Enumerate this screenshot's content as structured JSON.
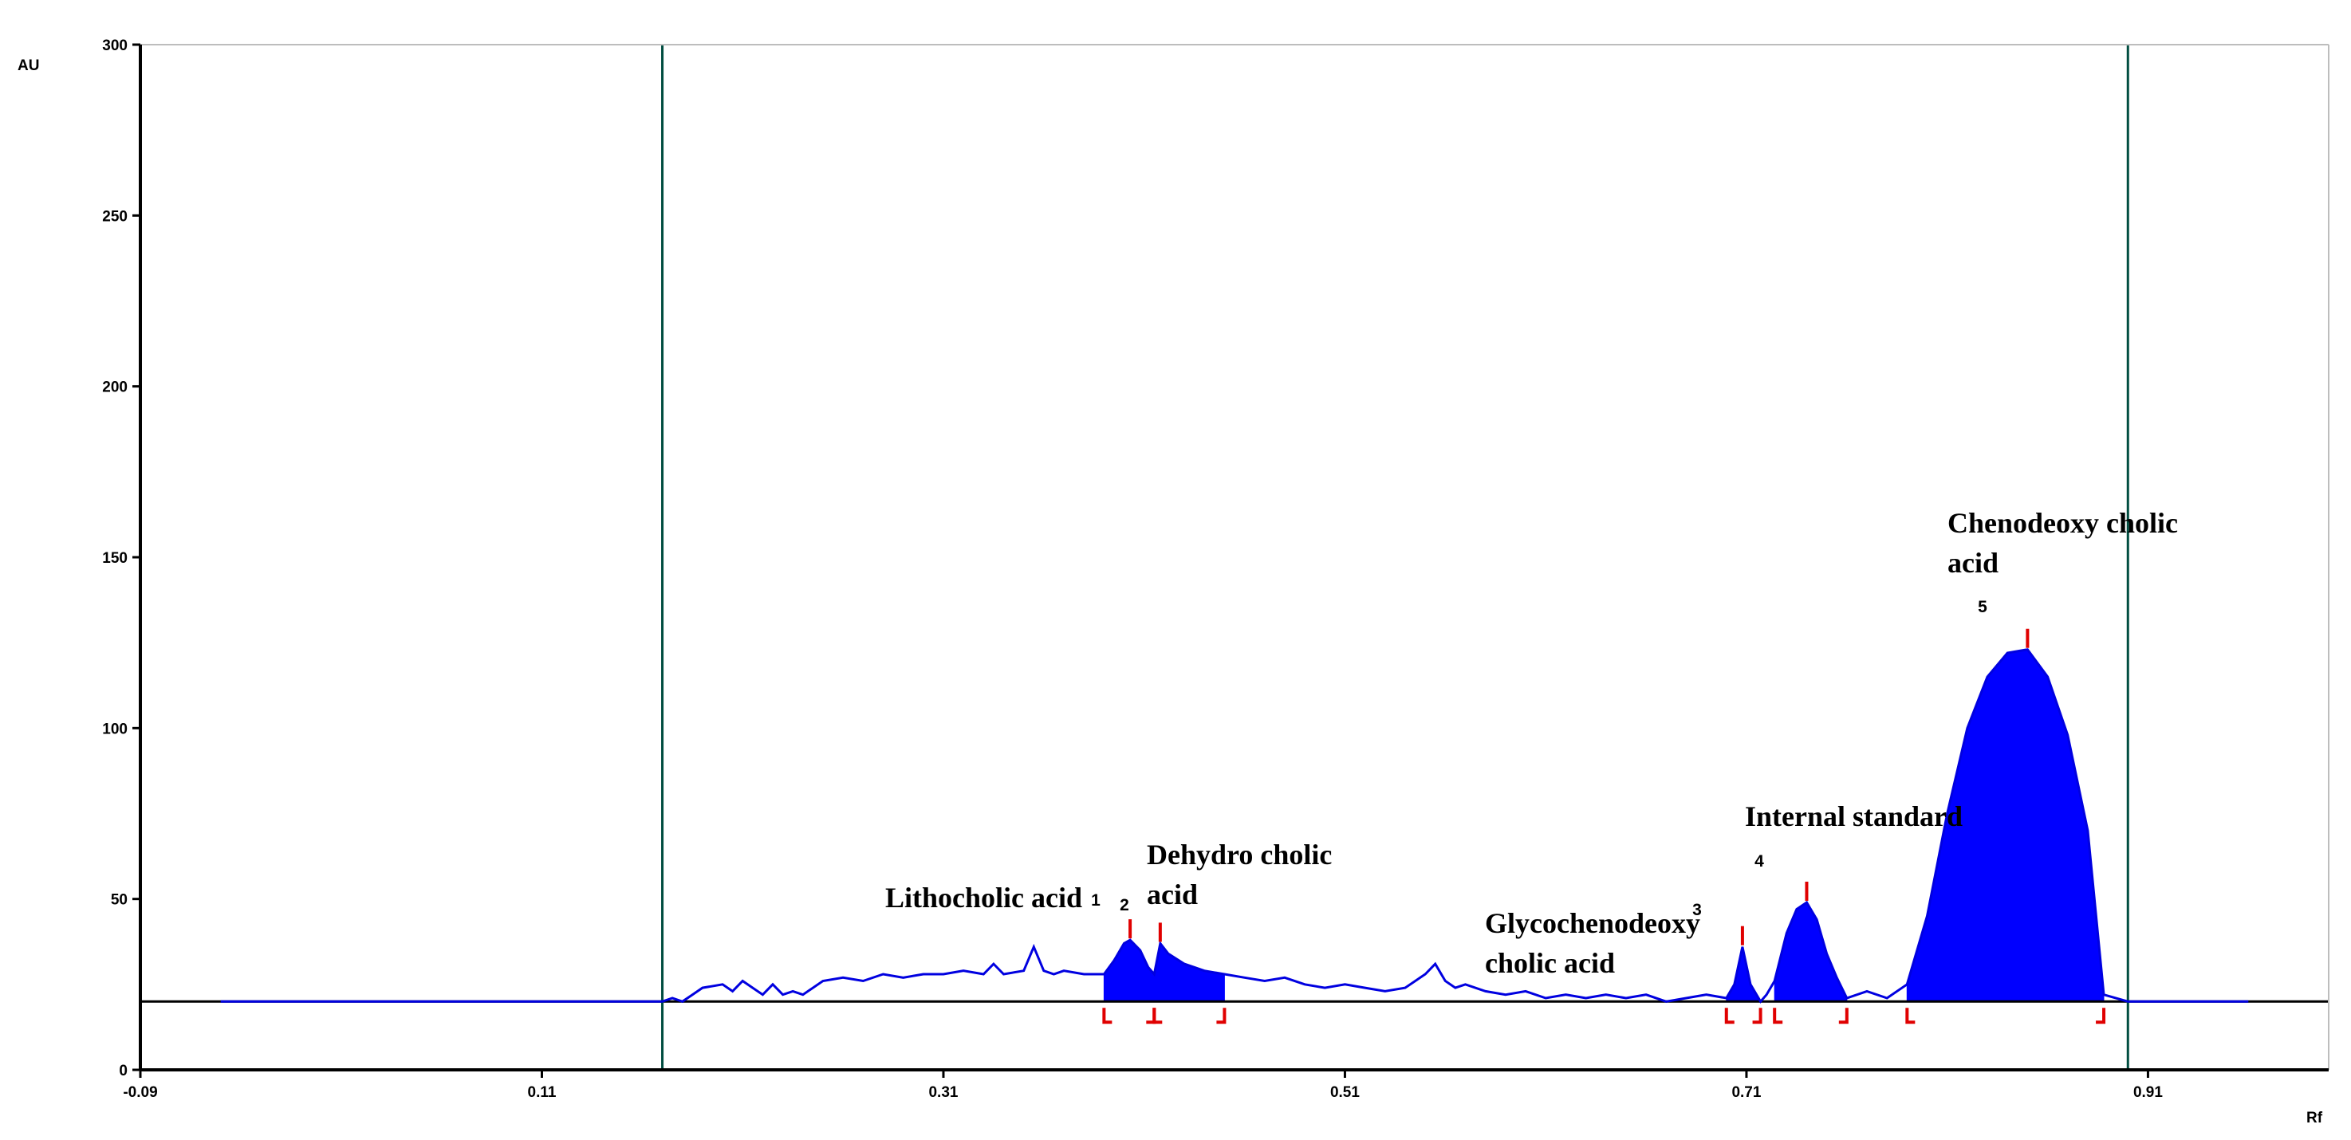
{
  "chart_data": {
    "type": "line",
    "xlabel": "Rf",
    "ylabel": "AU",
    "xlim": [
      -0.09,
      1.0
    ],
    "ylim": [
      0,
      300
    ],
    "x_ticks": [
      -0.09,
      0.11,
      0.31,
      0.51,
      0.71,
      0.91
    ],
    "x_tick_labels": [
      "-0.09",
      "0.11",
      "0.31",
      "0.51",
      "0.71",
      "0.91"
    ],
    "y_ticks": [
      0,
      50,
      100,
      150,
      200,
      250,
      300
    ],
    "y_tick_labels": [
      "0",
      "50",
      "100",
      "150",
      "200",
      "250",
      "300"
    ],
    "grid": false,
    "baseline": 20,
    "colors": {
      "trace": "#0000e0",
      "fill": "#0000ff",
      "markers": "#e00000",
      "axis": "#000000",
      "vlines": "#004d40"
    },
    "vertical_lines": [
      0.17,
      0.9
    ],
    "scan_range": [
      -0.05,
      0.96
    ],
    "peaks": [
      {
        "number": "1",
        "name": "Lithocholic acid",
        "start": 0.39,
        "max": 0.403,
        "end": 0.415,
        "height": 38
      },
      {
        "number": "2",
        "name": "Dehydro cholic acid",
        "start": 0.415,
        "max": 0.418,
        "end": 0.45,
        "height": 37
      },
      {
        "number": "3",
        "name": "Glycochenodeoxy cholic acid",
        "start": 0.7,
        "max": 0.708,
        "end": 0.717,
        "height": 36
      },
      {
        "number": "4",
        "name": "Internal standard",
        "start": 0.724,
        "max": 0.74,
        "end": 0.76,
        "height": 49
      },
      {
        "number": "5",
        "name": "Chenodeoxy cholic acid",
        "start": 0.79,
        "max": 0.85,
        "end": 0.888,
        "height": 123
      }
    ],
    "series": [
      {
        "x": [
          -0.05,
          0.17,
          0.175,
          0.18,
          0.185,
          0.19,
          0.2,
          0.205,
          0.21,
          0.215,
          0.22,
          0.225,
          0.23,
          0.235,
          0.24,
          0.25,
          0.26,
          0.27,
          0.28,
          0.29,
          0.3,
          0.31,
          0.32,
          0.33,
          0.335,
          0.34,
          0.35,
          0.355,
          0.36,
          0.365,
          0.37,
          0.38,
          0.39,
          0.395,
          0.4,
          0.403,
          0.408,
          0.412,
          0.415,
          0.418,
          0.422,
          0.43,
          0.44,
          0.45,
          0.46,
          0.47,
          0.48,
          0.49,
          0.5,
          0.51,
          0.52,
          0.53,
          0.54,
          0.55,
          0.555,
          0.56,
          0.565,
          0.57,
          0.58,
          0.59,
          0.6,
          0.61,
          0.62,
          0.63,
          0.64,
          0.65,
          0.66,
          0.67,
          0.68,
          0.69,
          0.7,
          0.704,
          0.708,
          0.712,
          0.717,
          0.72,
          0.724,
          0.73,
          0.735,
          0.74,
          0.745,
          0.75,
          0.755,
          0.76,
          0.77,
          0.78,
          0.79,
          0.8,
          0.81,
          0.82,
          0.83,
          0.84,
          0.85,
          0.86,
          0.87,
          0.88,
          0.888,
          0.9,
          0.96
        ],
        "y": [
          20,
          20,
          21,
          20,
          22,
          24,
          25,
          23,
          26,
          24,
          22,
          25,
          22,
          23,
          22,
          26,
          27,
          26,
          28,
          27,
          28,
          28,
          29,
          28,
          31,
          28,
          29,
          36,
          29,
          28,
          29,
          28,
          28,
          32,
          37,
          38,
          35,
          30,
          28,
          37,
          34,
          31,
          29,
          28,
          27,
          26,
          27,
          25,
          24,
          25,
          24,
          23,
          24,
          28,
          31,
          26,
          24,
          25,
          23,
          22,
          23,
          21,
          22,
          21,
          22,
          21,
          22,
          20,
          21,
          22,
          21,
          25,
          36,
          25,
          20,
          22,
          26,
          40,
          47,
          49,
          44,
          34,
          27,
          21,
          23,
          21,
          25,
          45,
          75,
          100,
          115,
          122,
          123,
          115,
          98,
          70,
          22,
          20,
          20
        ]
      }
    ]
  }
}
